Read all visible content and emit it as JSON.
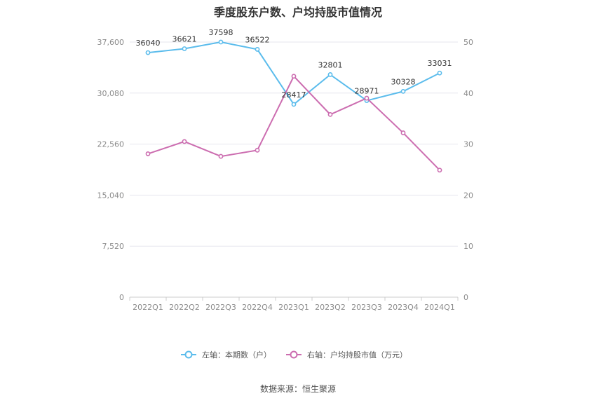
{
  "title": "季度股东户数、户均持股市值情况",
  "source": "数据来源：恒生聚源",
  "chart_data": {
    "type": "line",
    "title": "季度股东户数、户均持股市值情况",
    "categories": [
      "2022Q1",
      "2022Q2",
      "2022Q3",
      "2022Q4",
      "2023Q1",
      "2023Q2",
      "2023Q3",
      "2023Q4",
      "2024Q1"
    ],
    "left_axis": {
      "ylim": [
        0,
        37600
      ],
      "ticks": [
        "0",
        "7,520",
        "15,040",
        "22,560",
        "30,080",
        "37,600"
      ],
      "tick_values": [
        0,
        7520,
        15040,
        22560,
        30080,
        37600
      ]
    },
    "right_axis": {
      "ylim": [
        0,
        50
      ],
      "ticks": [
        "0",
        "10",
        "20",
        "30",
        "40",
        "50"
      ],
      "tick_values": [
        0,
        10,
        20,
        30,
        40,
        50
      ]
    },
    "grid": true,
    "legend_position": "bottom",
    "series": [
      {
        "name": "左轴：本期数（户）",
        "axis": "left",
        "color": "#5bbcec",
        "values": [
          36040,
          36621,
          37598,
          36522,
          28417,
          32801,
          28971,
          30328,
          33031
        ],
        "labels": [
          "36040",
          "36621",
          "37598",
          "36522",
          "28417",
          "32801",
          "28971",
          "30328",
          "33031"
        ]
      },
      {
        "name": "右轴：户均持股市值（万元）",
        "axis": "right",
        "color": "#cc6db0",
        "values": [
          28.1,
          30.5,
          27.6,
          28.8,
          43.3,
          35.8,
          39.0,
          32.2,
          24.9
        ]
      }
    ]
  }
}
